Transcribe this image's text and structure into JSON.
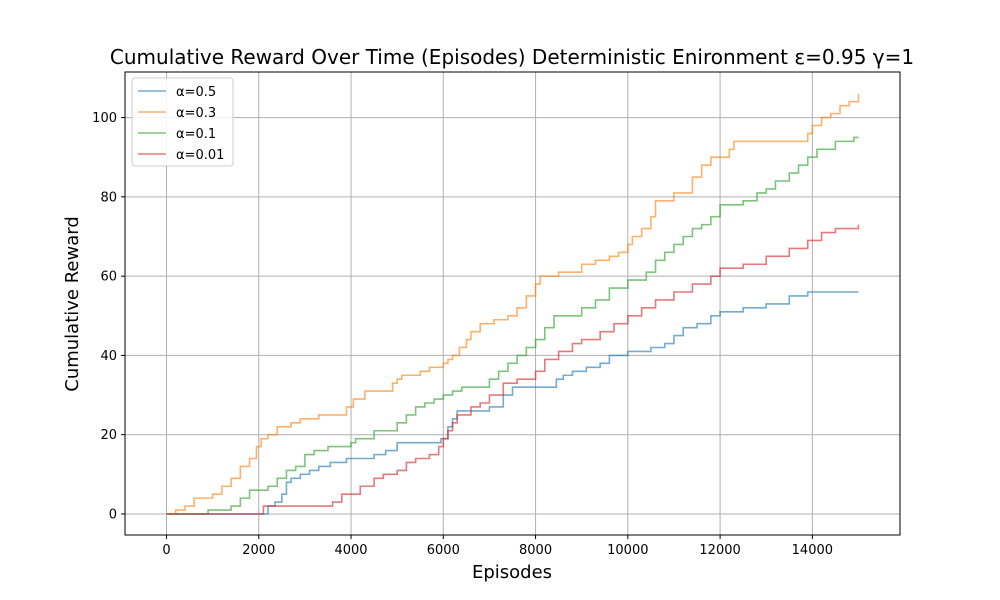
{
  "chart_data": {
    "type": "line",
    "title": "Cumulative Reward Over Time (Episodes) Deterministic Enironment ε=0.95 γ=1",
    "xlabel": "Episodes",
    "ylabel": "Cumulative Reward",
    "xlim": [
      -900,
      15900
    ],
    "ylim": [
      -5.3,
      111.5
    ],
    "xticks": [
      0,
      2000,
      4000,
      6000,
      8000,
      10000,
      12000,
      14000
    ],
    "yticks": [
      0,
      20,
      40,
      60,
      80,
      100
    ],
    "grid": true,
    "legend_position": "top-left",
    "series": [
      {
        "name": "α=0.5",
        "color": "#1f77b4",
        "x": [
          0,
          2150,
          2200,
          2350,
          2500,
          2600,
          2700,
          2900,
          3100,
          3300,
          3550,
          3800,
          3900,
          4000,
          4500,
          4750,
          5000,
          5800,
          5950,
          6100,
          6200,
          6300,
          6500,
          7000,
          7300,
          7500,
          8000,
          8450,
          8600,
          8800,
          9100,
          9400,
          9600,
          10000,
          10500,
          10800,
          11000,
          11200,
          11500,
          11800,
          12000,
          12500,
          13000,
          13500,
          13900,
          15000
        ],
        "y": [
          0,
          0,
          2,
          3,
          5,
          8,
          9,
          10,
          11,
          12,
          13,
          13,
          14,
          14,
          15,
          16,
          18,
          18,
          19,
          22,
          24,
          26,
          26,
          27,
          30,
          32,
          32,
          34,
          35,
          36,
          37,
          38,
          40,
          41,
          42,
          43,
          45,
          47,
          48,
          50,
          51,
          52,
          53,
          55,
          56,
          56
        ]
      },
      {
        "name": "α=0.3",
        "color": "#ff7f0e",
        "x": [
          0,
          200,
          400,
          600,
          1000,
          1200,
          1400,
          1600,
          1800,
          1950,
          2050,
          2200,
          2400,
          2700,
          2900,
          3300,
          3900,
          4050,
          4300,
          4900,
          5000,
          5100,
          5500,
          5700,
          6000,
          6100,
          6200,
          6350,
          6500,
          6600,
          6800,
          7100,
          7400,
          7600,
          7800,
          8000,
          8100,
          8500,
          9000,
          9300,
          9600,
          9800,
          10000,
          10100,
          10300,
          10500,
          10600,
          11000,
          11400,
          11600,
          11800,
          12200,
          12300,
          13700,
          13900,
          14000,
          14200,
          14400,
          14600,
          14800,
          15000
        ],
        "y": [
          0,
          1,
          2,
          4,
          5,
          7,
          9,
          12,
          14,
          17,
          19,
          20,
          22,
          23,
          24,
          25,
          27,
          29,
          31,
          33,
          34,
          35,
          36,
          37,
          38,
          39,
          40,
          42,
          44,
          46,
          48,
          49,
          50,
          52,
          55,
          58,
          60,
          61,
          63,
          64,
          65,
          66,
          68,
          70,
          72,
          75,
          79,
          81,
          85,
          88,
          90,
          92,
          94,
          94,
          96,
          98,
          100,
          101,
          103,
          104,
          106
        ]
      },
      {
        "name": "α=0.1",
        "color": "#2ca02c",
        "x": [
          0,
          700,
          900,
          1400,
          1600,
          1800,
          2200,
          2400,
          2600,
          2800,
          3000,
          3200,
          3500,
          4000,
          4100,
          4500,
          5000,
          5200,
          5400,
          5600,
          5800,
          6000,
          6200,
          6400,
          7000,
          7200,
          7400,
          7600,
          7800,
          8000,
          8200,
          8400,
          9000,
          9300,
          9600,
          10000,
          10400,
          10600,
          10800,
          11000,
          11200,
          11400,
          11600,
          11800,
          12000,
          12500,
          12800,
          13000,
          13200,
          13500,
          13700,
          13900,
          14100,
          14500,
          14900,
          15000
        ],
        "y": [
          0,
          0,
          1,
          2,
          4,
          6,
          7,
          9,
          11,
          12,
          15,
          16,
          17,
          18,
          19,
          21,
          23,
          25,
          27,
          28,
          29,
          30,
          31,
          32,
          34,
          36,
          38,
          40,
          42,
          44,
          47,
          50,
          52,
          54,
          57,
          59,
          61,
          64,
          66,
          68,
          70,
          72,
          73,
          75,
          78,
          79,
          81,
          82,
          84,
          86,
          88,
          90,
          92,
          94,
          95,
          95
        ]
      },
      {
        "name": "α=0.01",
        "color": "#d62728",
        "x": [
          0,
          2100,
          3300,
          3600,
          3800,
          4200,
          4500,
          4700,
          5000,
          5200,
          5400,
          5700,
          5900,
          6000,
          6100,
          6200,
          6300,
          6600,
          6800,
          7000,
          7300,
          7600,
          8000,
          8200,
          8500,
          8800,
          9000,
          9400,
          9700,
          10000,
          10300,
          10600,
          11000,
          11400,
          11800,
          12000,
          12500,
          13000,
          13500,
          13900,
          14200,
          14500,
          15000
        ],
        "y": [
          0,
          2,
          2,
          3,
          5,
          7,
          9,
          10,
          11,
          13,
          14,
          15,
          17,
          19,
          21,
          23,
          25,
          27,
          28,
          30,
          33,
          34,
          36,
          39,
          41,
          43,
          44,
          46,
          48,
          50,
          52,
          54,
          56,
          58,
          60,
          62,
          63,
          65,
          67,
          69,
          71,
          72,
          73
        ]
      }
    ]
  }
}
